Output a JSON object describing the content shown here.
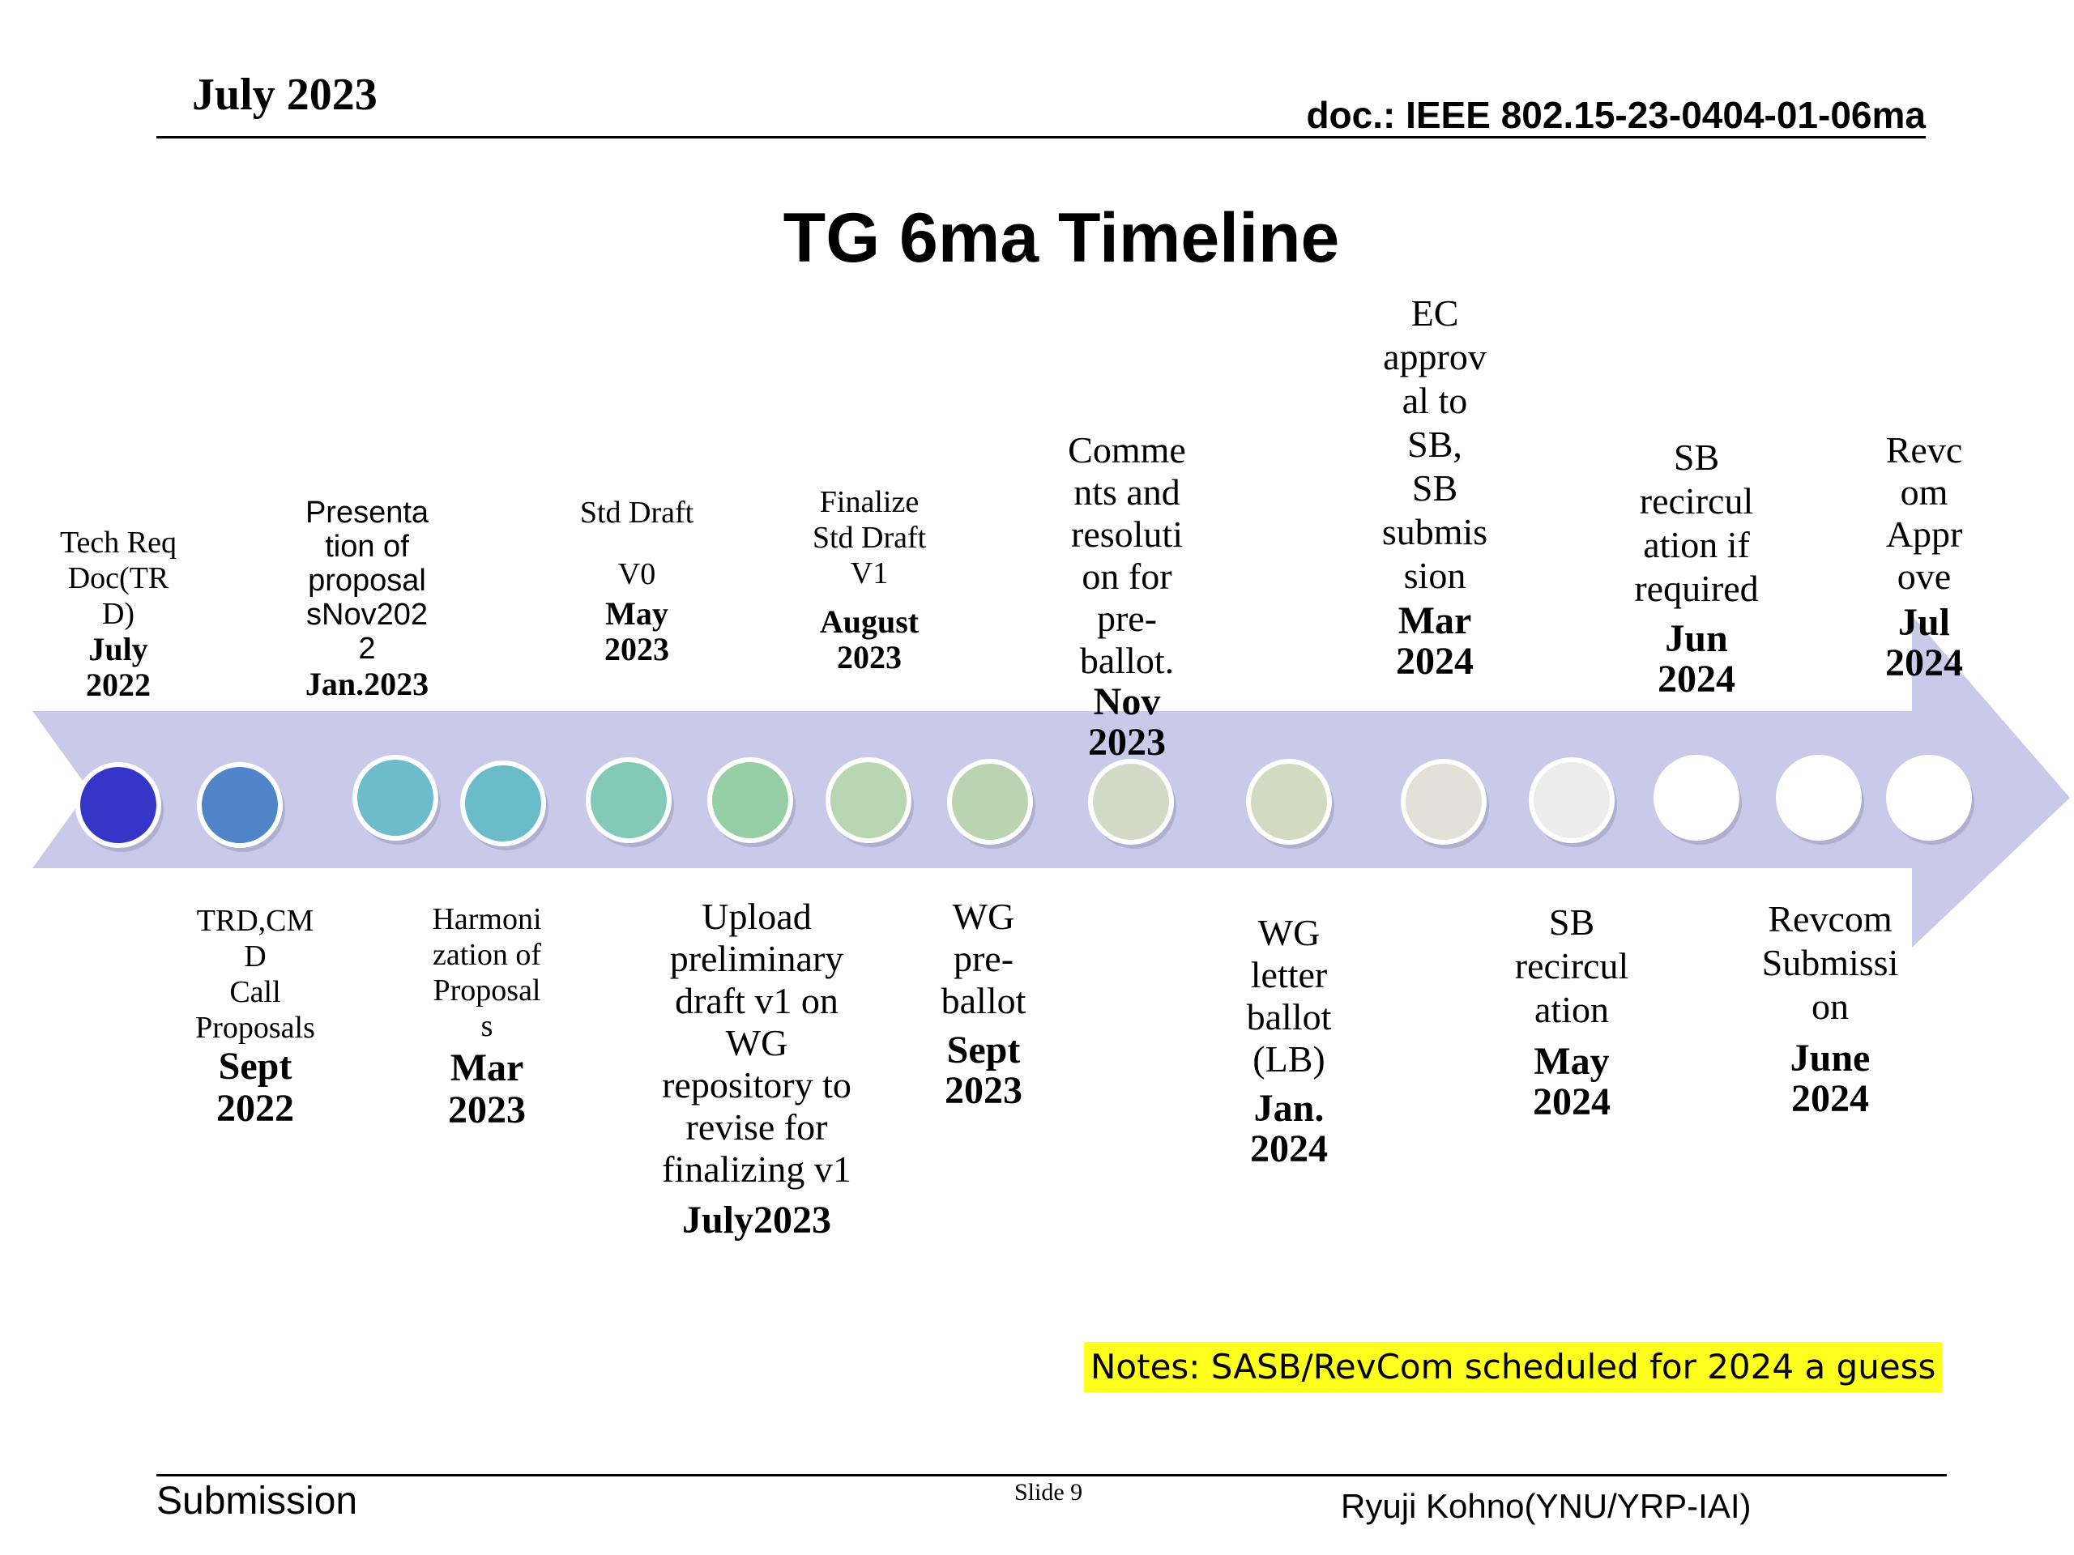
{
  "header": {
    "date": "July  2023",
    "doc_id": "doc.: IEEE 802.15-23-0404-01-06ma"
  },
  "title": "TG 6ma Timeline",
  "colors": {
    "arrow": "#c9c9e9",
    "circle_stroke": "#ffffff",
    "node_fills": [
      "#3535c8",
      "#4f85c8",
      "#6cbccb",
      "#6bbcc9",
      "#82c9b8",
      "#96cfa5",
      "#b9d6b2",
      "#bad4b1",
      "#d4dac8",
      "#d2dac2",
      "#e1e1d8",
      "#ececec",
      "#ffffff",
      "#ffffff",
      "#ffffff"
    ],
    "note_highlight": "#ffff1e"
  },
  "milestones_above": [
    {
      "desc": "Tech Req\nDoc(TR\nD)",
      "date": "July\n2022"
    },
    {
      "desc": "Presenta\ntion of\nproposal\nsNov202\n2",
      "date": "Jan.2023"
    },
    {
      "desc": "Std Draft\n\nV0",
      "date": "May\n2023"
    },
    {
      "desc": "Finalize\nStd Draft\nV1",
      "date": "August\n2023"
    },
    {
      "desc": "Comme\nnts and\nresoluti\non for\npre-\nballot.",
      "date": "Nov\n2023"
    },
    {
      "desc": "EC\napprov\nal to\nSB,\nSB\nsubmis\nsion",
      "date": "Mar\n2024"
    },
    {
      "desc": "SB\nrecircul\nation if\nrequired",
      "date": "Jun\n2024"
    },
    {
      "desc": "Revc\nom\nAppr\nove",
      "date": "Jul\n2024"
    }
  ],
  "milestones_below": [
    {
      "desc": "TRD,CM\nD\nCall\nProposals",
      "date": "Sept\n2022"
    },
    {
      "desc": "Harmoni\nzation of\nProposal\ns",
      "date": "Mar\n2023"
    },
    {
      "desc": "Upload\npreliminary\ndraft v1 on\nWG\nrepository to\nrevise for\nfinalizing v1",
      "date": "July2023"
    },
    {
      "desc": "WG\npre-\nballot",
      "date": "Sept\n2023"
    },
    {
      "desc": "WG\nletter\nballot\n(LB)",
      "date": "Jan.\n2024"
    },
    {
      "desc": "SB\nrecircul\nation",
      "date": "May\n2024"
    },
    {
      "desc": "Revcom\nSubmissi\non",
      "date": "June\n2024"
    }
  ],
  "note": "Notes:  SASB/RevCom scheduled for 2024 a guess",
  "footer": {
    "left": "Submission",
    "center": "Slide 9",
    "right": "Ryuji Kohno(YNU/YRP-IAI)"
  }
}
